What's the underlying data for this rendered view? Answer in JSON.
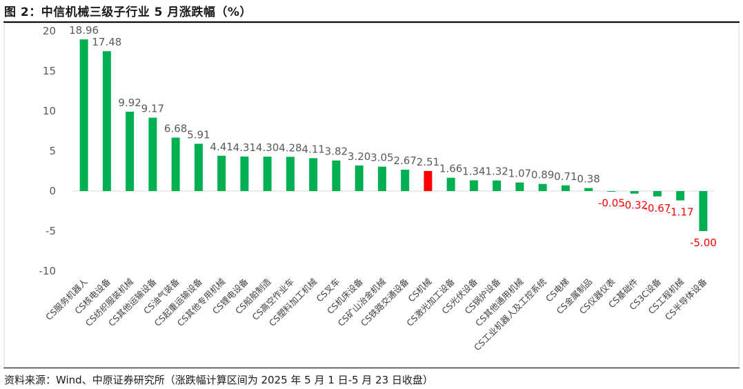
{
  "header": {
    "title": "图 2：中信机械三级子行业 5 月涨跌幅（%）"
  },
  "footer": {
    "source": "资料来源：Wind、中原证券研究所（涨跌幅计算区间为 2025 年 5 月 1 日-5 月 23 日收盘）"
  },
  "colors": {
    "positive": "#00b050",
    "highlight": "#ff0000",
    "negative": "#00b050",
    "negative_label": "#ff0000",
    "positive_label": "#595959",
    "axis_text": "#595959"
  },
  "chart_data": {
    "type": "bar",
    "title": "",
    "xlabel": "",
    "ylabel": "",
    "ylim": [
      -10,
      20
    ],
    "yticks": [
      20,
      15,
      10,
      5,
      0,
      -5,
      -10
    ],
    "grid": false,
    "legend": "none",
    "highlight_category": "CS机械",
    "categories": [
      "CS服务机器人",
      "CS核电设备",
      "CS纺织服装机械",
      "CS其他运输设备",
      "CS油气装备",
      "CS起重运输设备",
      "CS其他专用机械",
      "CS锂电设备",
      "CS船舶制造",
      "CS高空作业车",
      "CS塑料加工机械",
      "CS叉车",
      "CS机床设备",
      "CS矿山冶金机械",
      "CS铁路交通设备",
      "CS机械",
      "CS激光加工设备",
      "CS光伏设备",
      "CS锅炉设备",
      "CS其他通用机械",
      "CS工业机器人及工控系统",
      "CS电梯",
      "CS金属制品",
      "CS仪器仪表",
      "CS基础件",
      "CS3C设备",
      "CS工程机械",
      "CS半导体设备"
    ],
    "values": [
      18.96,
      17.48,
      9.92,
      9.17,
      6.68,
      5.91,
      4.41,
      4.31,
      4.3,
      4.28,
      4.11,
      3.82,
      3.2,
      3.05,
      2.67,
      2.51,
      1.66,
      1.34,
      1.32,
      1.07,
      0.89,
      0.71,
      0.38,
      -0.05,
      -0.32,
      -0.67,
      -1.17,
      -5.0
    ],
    "labels": [
      "18.96",
      "17.48",
      "9.92",
      "9.17",
      "6.68",
      "5.91",
      "4.41",
      "4.31",
      "4.30",
      "4.28",
      "4.11",
      "3.82",
      "3.20",
      "3.05",
      "2.67",
      "2.51",
      "1.66",
      "1.34",
      "1.32",
      "1.07",
      "0.89",
      "0.71",
      "0.38",
      "-0.05",
      "-0.32",
      "-0.67",
      "-1.17",
      "-5.00"
    ]
  }
}
